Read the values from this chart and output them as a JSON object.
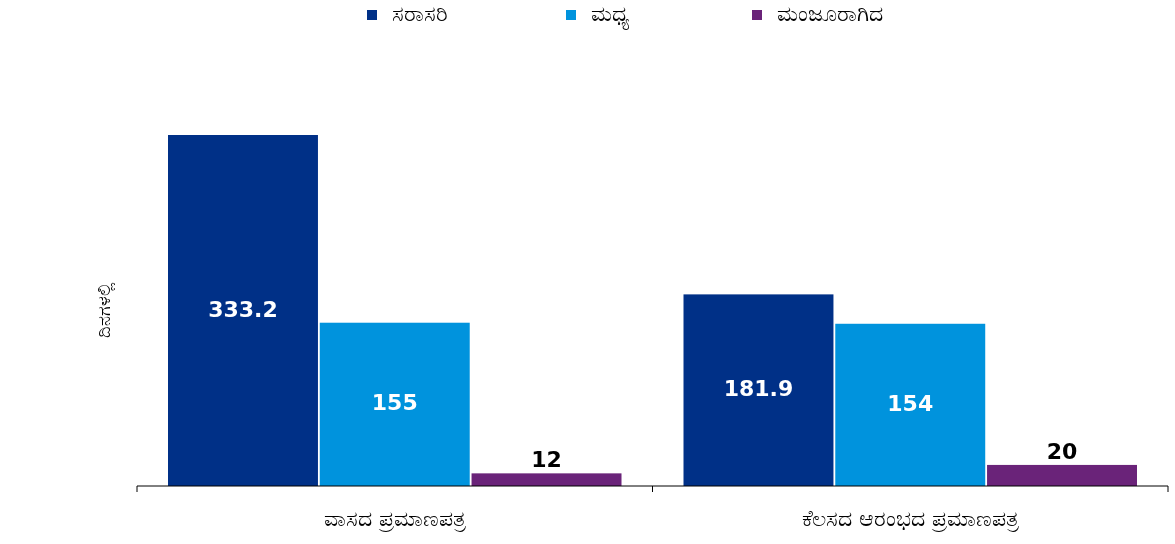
{
  "chart_data": {
    "type": "bar",
    "ylabel": "ದಿನಗಳಲ್ಲಿ",
    "categories": [
      "ವಾಸದ ಪ್ರಮಾಣಪತ್ರ",
      "ಕೆಲಸದ ಆರಂಭದ ಪ್ರಮಾಣಪತ್ರ"
    ],
    "data_labels": true,
    "legend": "top",
    "series": [
      {
        "name": "ಸರಾಸರಿ",
        "color": "#003087",
        "values": [
          333.2,
          181.9
        ]
      },
      {
        "name": "ಮಧ್ಯ",
        "color": "#0093dd",
        "values": [
          155,
          154
        ]
      },
      {
        "name": "ಮಂಜೂರಾಗಿದ",
        "color": "#6a2379",
        "values": [
          12,
          20
        ]
      }
    ]
  }
}
